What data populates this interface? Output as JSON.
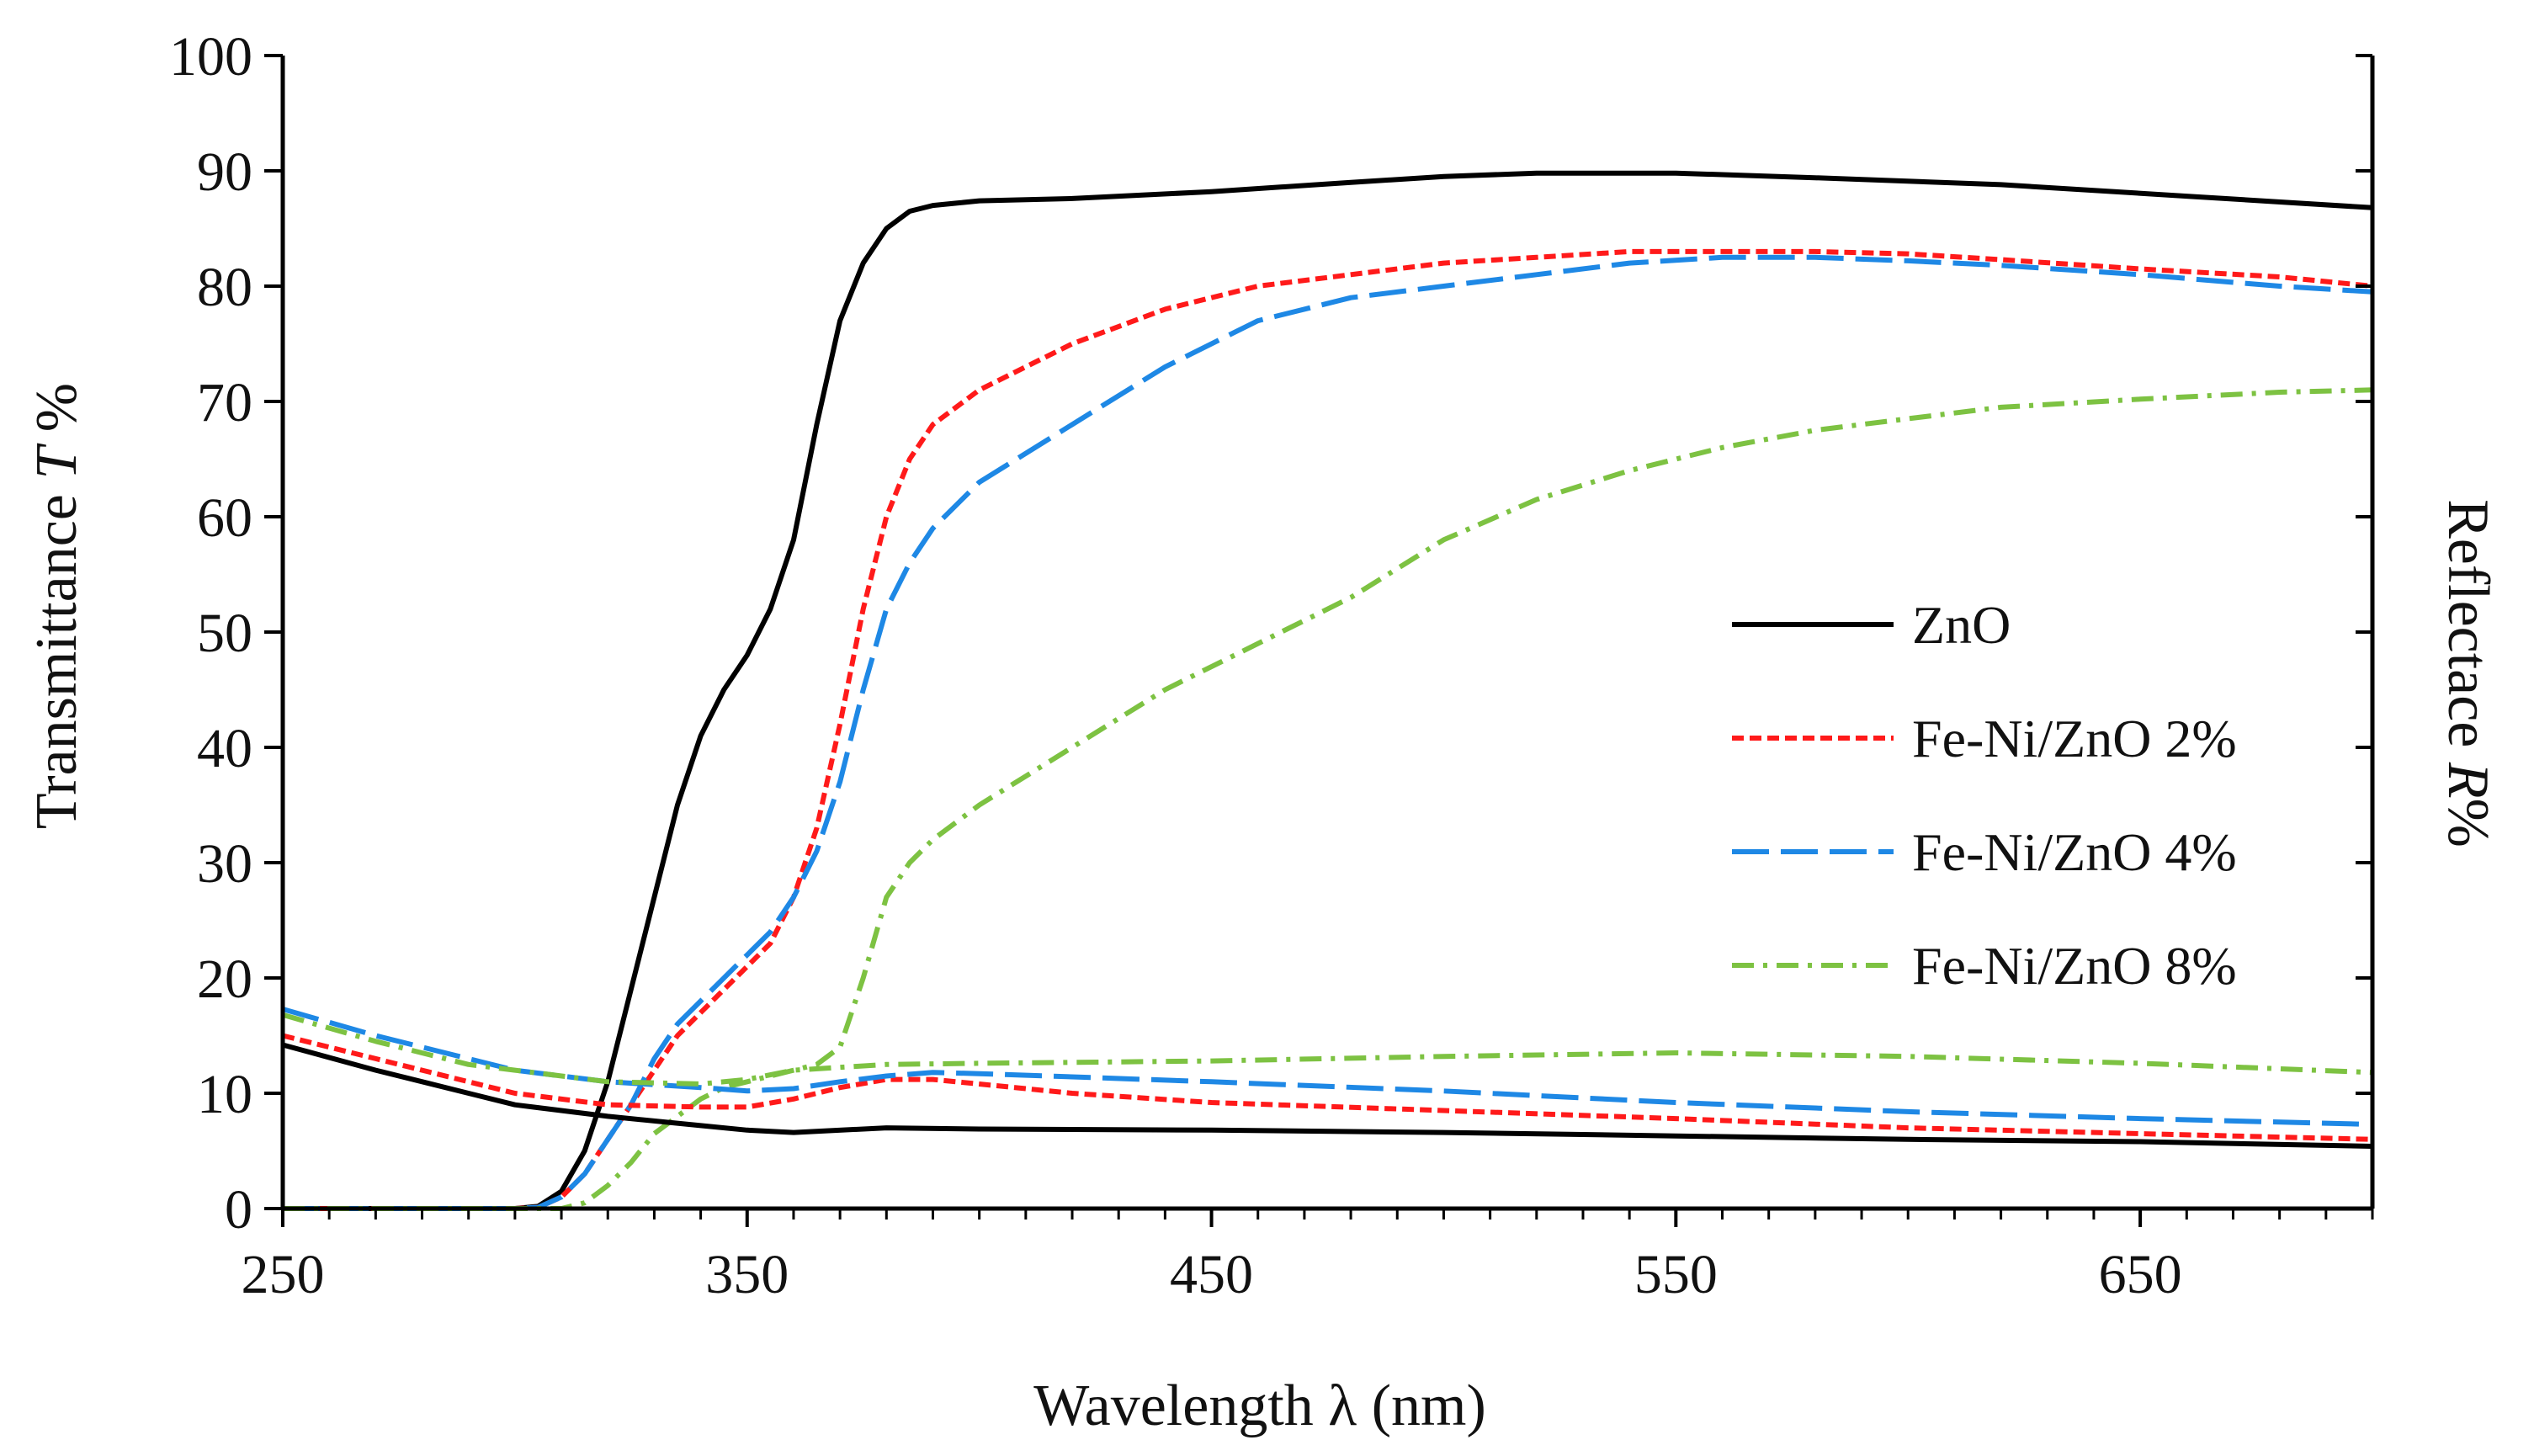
{
  "chart_data": {
    "type": "line",
    "title": "",
    "xlabel": "Wavelength λ (nm)",
    "ylabel_left": {
      "prefix": "Transmittance ",
      "italic": "T",
      "suffix": " %"
    },
    "ylabel_right": {
      "prefix": "Reflectace ",
      "italic": "R",
      "suffix": "%"
    },
    "xlim": [
      250,
      700
    ],
    "ylim": [
      0,
      100
    ],
    "x_ticks": [
      250,
      350,
      450,
      550,
      650
    ],
    "y_ticks": [
      0,
      10,
      20,
      30,
      40,
      50,
      60,
      70,
      80,
      90,
      100
    ],
    "grid": false,
    "legend_position": "right-middle",
    "legend": [
      {
        "label": "ZnO",
        "color": "#000000",
        "dash": "solid"
      },
      {
        "label": "Fe-Ni/ZnO 2%",
        "color": "#ff1a1a",
        "dash": "short-dash"
      },
      {
        "label": "Fe-Ni/ZnO 4%",
        "color": "#1e88e5",
        "dash": "long-dash"
      },
      {
        "label": "Fe-Ni/ZnO 8%",
        "color": "#7dc242",
        "dash": "dash-dot"
      }
    ],
    "series": [
      {
        "name": "ZnO transmittance",
        "legend_index": 0,
        "x": [
          250,
          300,
          305,
          310,
          315,
          320,
          325,
          330,
          335,
          340,
          345,
          350,
          355,
          360,
          365,
          370,
          375,
          380,
          385,
          390,
          395,
          400,
          420,
          450,
          480,
          500,
          520,
          550,
          580,
          620,
          660,
          700
        ],
        "y": [
          0,
          0,
          0.2,
          1.5,
          5,
          11,
          19,
          27,
          35,
          41,
          45,
          48,
          52,
          58,
          68,
          77,
          82,
          85,
          86.5,
          87,
          87.2,
          87.4,
          87.6,
          88.2,
          89,
          89.5,
          89.8,
          89.8,
          89.4,
          88.8,
          87.8,
          86.8
        ]
      },
      {
        "name": "Fe-Ni/ZnO 2% transmittance",
        "legend_index": 1,
        "x": [
          250,
          300,
          305,
          310,
          315,
          320,
          325,
          330,
          335,
          340,
          345,
          350,
          355,
          360,
          365,
          370,
          375,
          380,
          385,
          390,
          400,
          420,
          440,
          460,
          480,
          500,
          520,
          540,
          560,
          580,
          600,
          620,
          650,
          680,
          700
        ],
        "y": [
          0,
          0,
          0.1,
          1,
          3,
          6,
          9,
          12,
          15,
          17,
          19,
          21,
          23,
          27,
          33,
          42,
          52,
          60,
          65,
          68,
          71,
          75,
          78,
          80,
          81,
          82,
          82.5,
          83,
          83,
          83,
          82.8,
          82.3,
          81.5,
          80.8,
          80
        ]
      },
      {
        "name": "Fe-Ni/ZnO 4% transmittance",
        "legend_index": 2,
        "x": [
          250,
          300,
          305,
          310,
          315,
          320,
          325,
          330,
          335,
          340,
          345,
          350,
          355,
          360,
          365,
          370,
          375,
          380,
          385,
          390,
          400,
          420,
          440,
          460,
          480,
          500,
          520,
          540,
          560,
          580,
          600,
          620,
          650,
          680,
          700
        ],
        "y": [
          0,
          0,
          0.1,
          1,
          3,
          6,
          9,
          13,
          16,
          18,
          20,
          22,
          24,
          27,
          31,
          37,
          45,
          52,
          56,
          59,
          63,
          68,
          73,
          77,
          79,
          80,
          81,
          82,
          82.5,
          82.5,
          82.2,
          81.8,
          81,
          80,
          79.5
        ]
      },
      {
        "name": "Fe-Ni/ZnO 8% transmittance",
        "legend_index": 3,
        "x": [
          250,
          310,
          315,
          320,
          325,
          330,
          335,
          340,
          345,
          350,
          355,
          360,
          365,
          370,
          375,
          380,
          385,
          390,
          400,
          420,
          440,
          460,
          480,
          500,
          520,
          540,
          560,
          580,
          600,
          620,
          650,
          680,
          700
        ],
        "y": [
          0,
          0,
          0.5,
          2,
          4,
          6.5,
          8,
          9.5,
          10.5,
          11,
          11.5,
          12,
          12.5,
          14,
          20,
          27,
          30,
          32,
          35,
          40,
          45,
          49,
          53,
          58,
          61.5,
          64,
          66,
          67.5,
          68.5,
          69.5,
          70.2,
          70.8,
          71
        ]
      },
      {
        "name": "ZnO reflectance",
        "legend_index": 0,
        "x": [
          250,
          270,
          290,
          300,
          320,
          340,
          350,
          360,
          380,
          400,
          450,
          500,
          550,
          600,
          650,
          700
        ],
        "y": [
          14.2,
          12,
          10,
          9,
          8,
          7.2,
          6.8,
          6.6,
          7,
          6.9,
          6.8,
          6.6,
          6.3,
          6,
          5.8,
          5.4
        ]
      },
      {
        "name": "Fe-Ni/ZnO 2% reflectance",
        "legend_index": 1,
        "x": [
          250,
          270,
          290,
          300,
          320,
          340,
          350,
          360,
          370,
          380,
          390,
          400,
          420,
          450,
          500,
          550,
          600,
          650,
          700
        ],
        "y": [
          15,
          13,
          11,
          10,
          9,
          8.8,
          8.8,
          9.5,
          10.5,
          11.2,
          11.2,
          10.8,
          10,
          9.2,
          8.5,
          7.8,
          7,
          6.5,
          6
        ]
      },
      {
        "name": "Fe-Ni/ZnO 4% reflectance",
        "legend_index": 2,
        "x": [
          250,
          270,
          290,
          300,
          320,
          340,
          350,
          360,
          370,
          380,
          390,
          400,
          450,
          500,
          550,
          600,
          650,
          700
        ],
        "y": [
          17.3,
          15,
          13,
          12,
          11,
          10.5,
          10.2,
          10.4,
          11,
          11.5,
          11.8,
          11.7,
          11,
          10.2,
          9.2,
          8.4,
          7.8,
          7.3
        ]
      },
      {
        "name": "Fe-Ni/ZnO 8% reflectance",
        "legend_index": 3,
        "x": [
          250,
          270,
          290,
          300,
          320,
          340,
          350,
          360,
          380,
          400,
          450,
          500,
          550,
          600,
          650,
          700
        ],
        "y": [
          16.8,
          14.5,
          12.5,
          12,
          11,
          10.8,
          11.2,
          12,
          12.5,
          12.6,
          12.8,
          13.2,
          13.5,
          13.2,
          12.6,
          11.8
        ]
      }
    ]
  }
}
